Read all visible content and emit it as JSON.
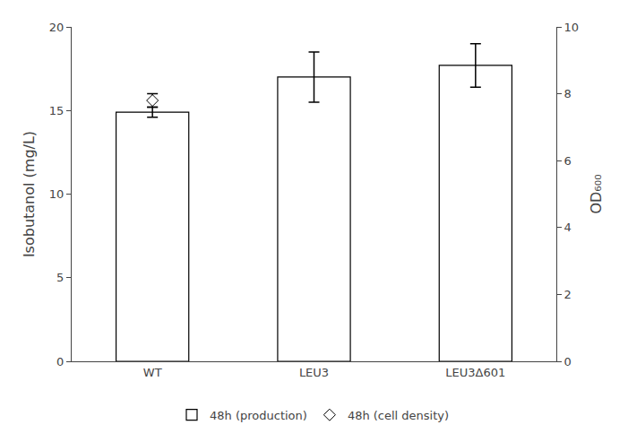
{
  "chart_data": {
    "type": "bar",
    "categories": [
      "WT",
      "LEU3",
      "LEU3Δ601"
    ],
    "ylabel": "Isobutanol (mg/L)",
    "y2label": "OD₆₀₀",
    "ylim": [
      0,
      20
    ],
    "yticks": [
      0,
      5,
      10,
      15,
      20
    ],
    "y2lim": [
      0,
      10
    ],
    "y2ticks": [
      0,
      2,
      4,
      6,
      8,
      10
    ],
    "grid": false,
    "legend": "bottom",
    "series": [
      {
        "name": "48h (production)",
        "type": "bar",
        "color": "#ffffff",
        "values": [
          14.9,
          17.0,
          17.7
        ],
        "errors": [
          0.3,
          1.5,
          1.3
        ]
      },
      {
        "name": "48h (cell density)",
        "type": "scatter",
        "axis": "y2",
        "marker": "diamond",
        "color": "#ffffff",
        "values": [
          7.8,
          null,
          null
        ],
        "errors": [
          0.2,
          null,
          null
        ]
      }
    ]
  }
}
